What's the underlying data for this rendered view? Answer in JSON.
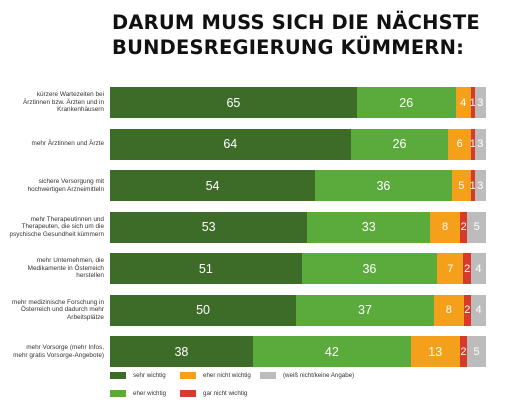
{
  "title": {
    "line1": "DARUM MUSS SICH DIE NÄCHSTE",
    "line2": "BUNDESREGIERUNG KÜMMERN:"
  },
  "colors": {
    "sehr_wichtig": "#3d6b28",
    "eher_wichtig": "#5aaa3c",
    "eher_nicht_wichtig": "#f5a01a",
    "gar_nicht_wichtig": "#d63a2a",
    "weiss_nicht": "#bcbcbc"
  },
  "chart_data": {
    "type": "bar",
    "orientation": "horizontal",
    "stacked": true,
    "unit": "%",
    "categories": [
      "kürzere Wartezeiten bei Ärztinnen bzw. Ärzten und in Krankenhäusern",
      "mehr Ärztinnen und Ärzte",
      "sichere Versorgung mit hochwertigen Arzneimitteln",
      "mehr Therapeutinnen und Therapeuten, die sich um die psychische Gesundheit kümmern",
      "mehr Unternehmen, die Medikamente in Österreich herstellen",
      "mehr medizinische Forschung in Österreich und dadurch mehr Arbeitsplätze",
      "mehr Vorsorge (mehr Infos, mehr gratis Vorsorge-Angebote)"
    ],
    "category_lines": [
      [
        "kürzere Wartezeiten bei",
        "Ärztinnen bzw. Ärzten und in",
        "Krankenhäusern"
      ],
      [
        "mehr Ärztinnen und Ärzte"
      ],
      [
        "sichere Versorgung mit",
        "hochwertigen Arzneimitteln"
      ],
      [
        "mehr Therapeutinnen und",
        "Therapeuten, die sich um die",
        "psychische Gesundheit kümmern"
      ],
      [
        "mehr Unternehmen, die",
        "Medikamente in Österreich",
        "herstellen"
      ],
      [
        "mehr medizinische Forschung in",
        "Österreich und dadurch mehr",
        "Arbeitsplätze"
      ],
      [
        "mehr Vorsorge (mehr Infos,",
        "mehr gratis Vorsorge-Angebote)"
      ]
    ],
    "series": [
      {
        "name": "sehr wichtig",
        "color": "#3d6b28",
        "values": [
          65,
          64,
          54,
          53,
          51,
          50,
          38
        ]
      },
      {
        "name": "eher wichtig",
        "color": "#5aaa3c",
        "values": [
          26,
          26,
          36,
          33,
          36,
          37,
          42
        ]
      },
      {
        "name": "eher nicht wichtig",
        "color": "#f5a01a",
        "values": [
          4,
          6,
          5,
          8,
          7,
          8,
          13
        ]
      },
      {
        "name": "gar nicht wichtig",
        "color": "#d63a2a",
        "values": [
          1,
          1,
          1,
          2,
          2,
          2,
          2
        ]
      },
      {
        "name": "(weiß nicht/keine Angabe)",
        "color": "#bcbcbc",
        "values": [
          3,
          3,
          3,
          5,
          4,
          4,
          5
        ]
      }
    ],
    "legend": [
      {
        "label": "sehr wichtig",
        "color": "#3d6b28"
      },
      {
        "label": "eher nicht wichtig",
        "color": "#f5a01a"
      },
      {
        "label": "(weiß nicht/keine Angabe)",
        "color": "#bcbcbc"
      },
      {
        "label": "eher wichtig",
        "color": "#5aaa3c"
      },
      {
        "label": "gar nicht wichtig",
        "color": "#d63a2a"
      }
    ],
    "legend_position": "bottom"
  }
}
